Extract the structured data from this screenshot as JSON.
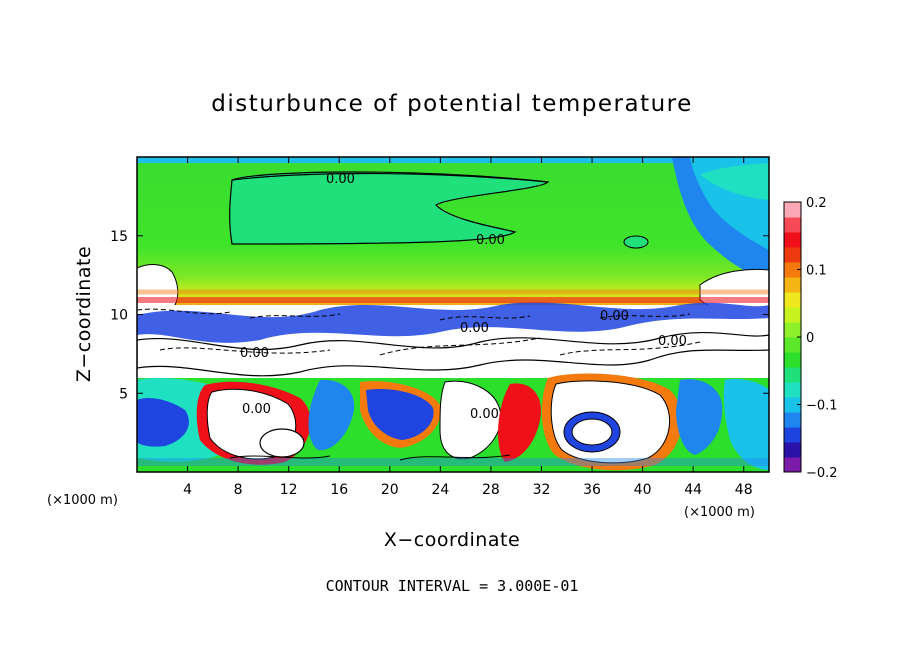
{
  "chart_data": {
    "type": "heatmap",
    "title": "disturbunce of potential temperature",
    "xlabel": "X−coordinate",
    "ylabel": "Z−coordinate",
    "x_unit": "(×1000 m)",
    "y_unit": "(×1000 m)",
    "xlim": [
      0,
      50
    ],
    "ylim": [
      0,
      20
    ],
    "x_ticks": [
      4,
      8,
      12,
      16,
      20,
      24,
      28,
      32,
      36,
      40,
      44,
      48
    ],
    "y_ticks": [
      5,
      10,
      15
    ],
    "colorbar": {
      "min": -0.2,
      "max": 0.2,
      "tick_values": [
        0.2,
        0.1,
        0,
        -0.1,
        -0.2
      ],
      "tick_labels": [
        "0.2",
        "0.1",
        "0",
        "−0.1",
        "−0.2"
      ],
      "colors": [
        "#7a1ca8",
        "#2a12a8",
        "#1e44e0",
        "#1f86f0",
        "#19c2e8",
        "#1fe0c0",
        "#1fe07a",
        "#2bdf2b",
        "#5be82a",
        "#8ef02a",
        "#c8f21e",
        "#f0e81e",
        "#f4b414",
        "#f47a0e",
        "#ee3a10",
        "#f0101a",
        "#f84a56",
        "#fca8b6"
      ]
    },
    "contour_labels": [
      "0.00",
      "0.00",
      "0.00",
      "0.00",
      "0.00",
      "0.00",
      "0.00",
      "0.00"
    ],
    "contour_interval_text": "CONTOUR INTERVAL =  3.000E-01"
  }
}
